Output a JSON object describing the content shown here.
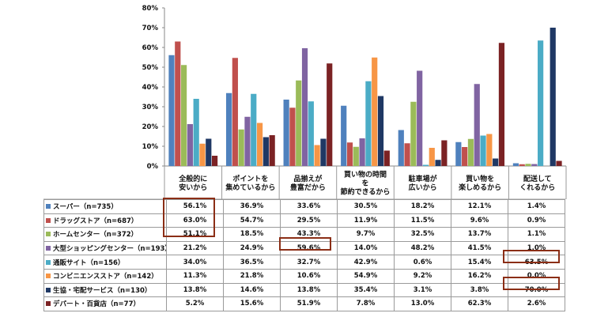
{
  "chart_data": {
    "type": "bar",
    "categories": [
      "全般的に\n安いから",
      "ポイントを\n集めているから",
      "品揃えが\n豊富だから",
      "買い物の時間\nを\n節約できるから",
      "駐車場が\n広いから",
      "買い物を\n楽しめるから",
      "配送して\nくれるから"
    ],
    "series": [
      {
        "name": "スーパー（n=735）",
        "color": "#4f81bd",
        "values": [
          56.1,
          36.9,
          33.6,
          30.5,
          18.2,
          12.1,
          1.4
        ],
        "labels": [
          "56.1%",
          "36.9%",
          "33.6%",
          "30.5%",
          "18.2%",
          "12.1%",
          "1.4%"
        ]
      },
      {
        "name": "ドラッグストア（n=687）",
        "color": "#c0504d",
        "values": [
          63.0,
          54.7,
          29.5,
          11.9,
          11.5,
          9.6,
          0.9
        ],
        "labels": [
          "63.0%",
          "54.7%",
          "29.5%",
          "11.9%",
          "11.5%",
          "9.6%",
          "0.9%"
        ]
      },
      {
        "name": "ホームセンター（n=372）",
        "color": "#9bbb59",
        "values": [
          51.1,
          18.5,
          43.3,
          9.7,
          32.5,
          13.7,
          1.1
        ],
        "labels": [
          "51.1%",
          "18.5%",
          "43.3%",
          "9.7%",
          "32.5%",
          "13.7%",
          "1.1%"
        ]
      },
      {
        "name": "大型ショッピングセンター（n=193）",
        "color": "#8064a2",
        "values": [
          21.2,
          24.9,
          59.6,
          14.0,
          48.2,
          41.5,
          1.0
        ],
        "labels": [
          "21.2%",
          "24.9%",
          "59.6%",
          "14.0%",
          "48.2%",
          "41.5%",
          "1.0%"
        ]
      },
      {
        "name": "通販サイト（n=156）",
        "color": "#4bacc6",
        "values": [
          34.0,
          36.5,
          32.7,
          42.9,
          0.6,
          15.4,
          63.5
        ],
        "labels": [
          "34.0%",
          "36.5%",
          "32.7%",
          "42.9%",
          "0.6%",
          "15.4%",
          "63.5%"
        ]
      },
      {
        "name": "コンビニエンスストア（n=142）",
        "color": "#f79646",
        "values": [
          11.3,
          21.8,
          10.6,
          54.9,
          9.2,
          16.2,
          0.0
        ],
        "labels": [
          "11.3%",
          "21.8%",
          "10.6%",
          "54.9%",
          "9.2%",
          "16.2%",
          "0.0%"
        ]
      },
      {
        "name": "生協・宅配サービス（n=130）",
        "color": "#1f3864",
        "values": [
          13.8,
          14.6,
          13.8,
          35.4,
          3.1,
          3.8,
          70.0
        ],
        "labels": [
          "13.8%",
          "14.6%",
          "13.8%",
          "35.4%",
          "3.1%",
          "3.8%",
          "70.0%"
        ]
      },
      {
        "name": "デパート・百貨店（n=77）",
        "color": "#7b2224",
        "values": [
          5.2,
          15.6,
          51.9,
          7.8,
          13.0,
          62.3,
          2.6
        ],
        "labels": [
          "5.2%",
          "15.6%",
          "51.9%",
          "7.8%",
          "13.0%",
          "62.3%",
          "2.6%"
        ]
      }
    ],
    "y_ticks": [
      "0%",
      "10%",
      "20%",
      "30%",
      "40%",
      "50%",
      "60%",
      "70%",
      "80%"
    ],
    "ylim": [
      0,
      80
    ],
    "grid": false,
    "highlighted_cells": [
      {
        "category": "全般的に\n安いから",
        "series": [
          "スーパー（n=735）",
          "ドラッグストア（n=687）",
          "ホームセンター（n=372）"
        ]
      },
      {
        "category": "品揃えが\n豊富だから",
        "series": [
          "大型ショッピングセンター（n=193）"
        ]
      },
      {
        "category": "配送して\nくれるから",
        "series": [
          "通販サイト（n=156）"
        ]
      },
      {
        "category": "配送して\nくれるから",
        "series": [
          "生協・宅配サービス（n=130）"
        ]
      }
    ],
    "highlight_color": "#8b2e16"
  }
}
